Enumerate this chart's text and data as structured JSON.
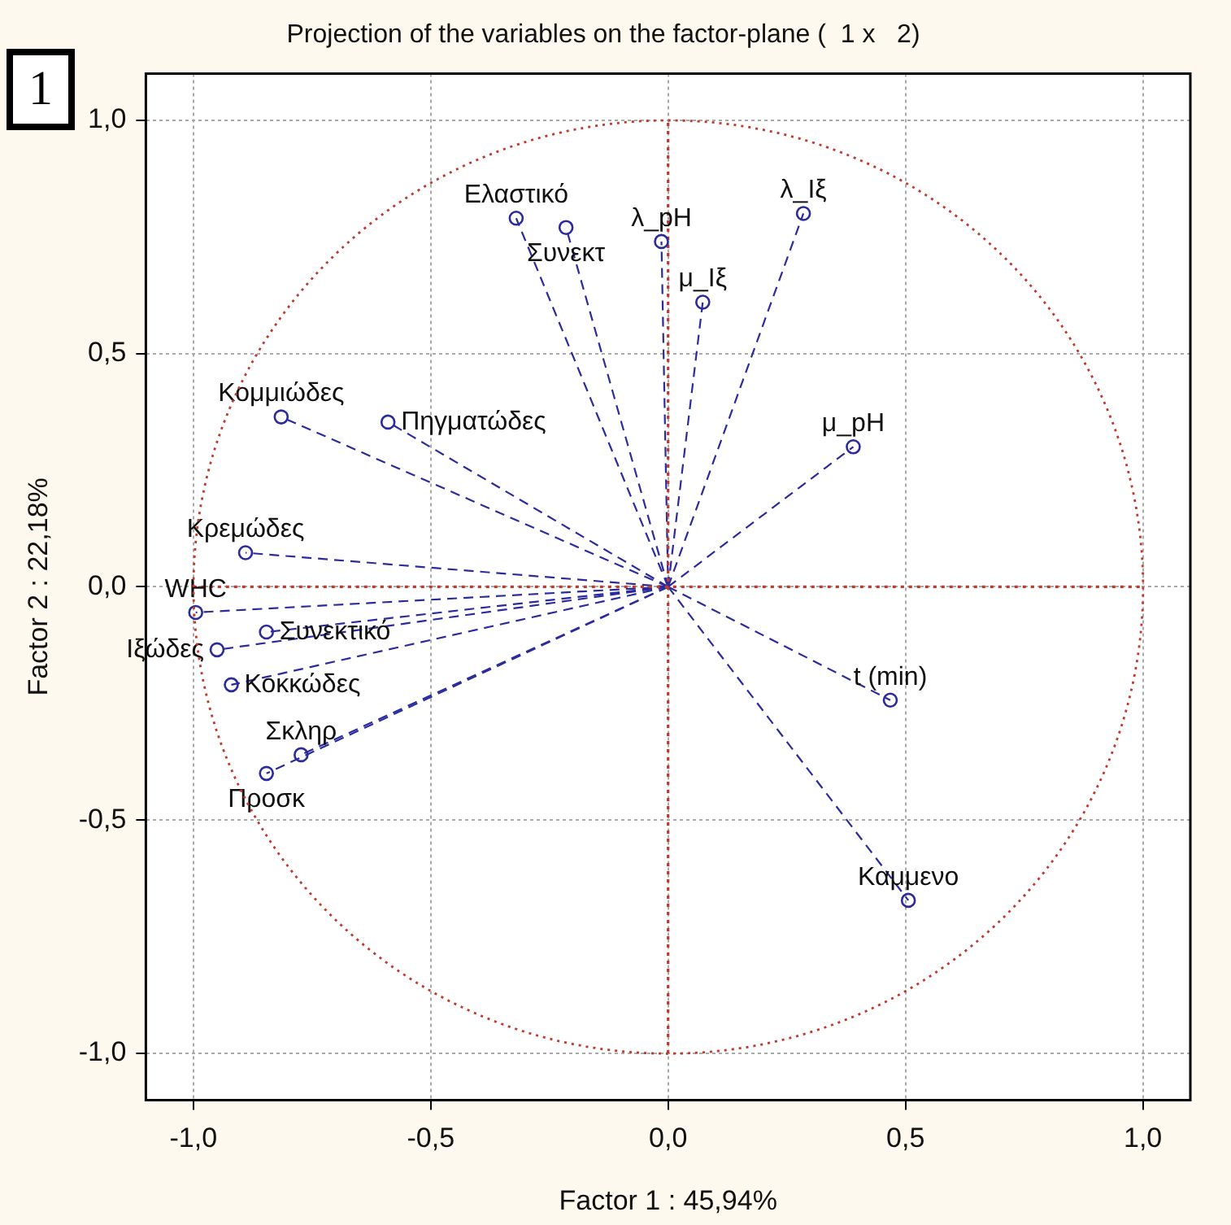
{
  "chart_data": {
    "type": "scatter",
    "title": "Projection of the variables on the factor-plane (  1 x   2)",
    "xlabel": "Factor 1 : 45,94%",
    "ylabel": "Factor 2 : 22,18%",
    "annotations": [
      "1"
    ],
    "xlim": [
      -1.1,
      1.1
    ],
    "ylim": [
      -1.1,
      1.1
    ],
    "xticks": [
      {
        "value": -1,
        "label": "-1,0"
      },
      {
        "value": -0.5,
        "label": "-0,5"
      },
      {
        "value": 0,
        "label": "0,0"
      },
      {
        "value": 0.5,
        "label": "0,5"
      },
      {
        "value": 1,
        "label": "1,0"
      }
    ],
    "yticks": [
      {
        "value": -1,
        "label": "-1,0"
      },
      {
        "value": -0.5,
        "label": "-0,5"
      },
      {
        "value": 0,
        "label": "0,0"
      },
      {
        "value": 0.5,
        "label": "0,5"
      },
      {
        "value": 1,
        "label": "1,0"
      }
    ],
    "grid": true,
    "legend": false,
    "series": [
      {
        "color": "#2b2b9e",
        "marker": "circle",
        "line_style": "dashed",
        "x": [
          -0.32,
          -0.215,
          -0.014,
          0.285,
          0.073,
          0.39,
          -0.815,
          -0.59,
          -0.89,
          -0.995,
          -0.846,
          -0.95,
          -0.92,
          -0.773,
          -0.846,
          0.468,
          0.506
        ],
        "values": [
          0.79,
          0.77,
          0.74,
          0.8,
          0.61,
          0.3,
          0.364,
          0.353,
          0.073,
          -0.055,
          -0.097,
          -0.135,
          -0.21,
          -0.36,
          -0.4,
          -0.243,
          -0.672
        ],
        "value_labels": [
          "Ελαστικό",
          "Συνεκτ",
          "λ_pH",
          "λ_Ιξ",
          "μ_Ιξ",
          "μ_pH",
          "Κομμιώδες",
          "Πηγματώδες",
          "Κρεμώδες",
          "WHC",
          "Συνεκτικό",
          "Ιξώδες",
          "Κοκκώδες",
          "Σκληρ",
          "Προσκ",
          "t (min)",
          "Καμμενο"
        ]
      },
      {
        "type": "line",
        "color": "#c0392b",
        "marker": "none",
        "line_style": "dotted",
        "x": [
          -1,
          1
        ],
        "values": [
          0,
          0
        ]
      },
      {
        "type": "line",
        "color": "#c0392b",
        "marker": "none",
        "line_style": "dotted",
        "x": [
          0,
          0
        ],
        "values": [
          -1,
          1
        ]
      }
    ]
  }
}
